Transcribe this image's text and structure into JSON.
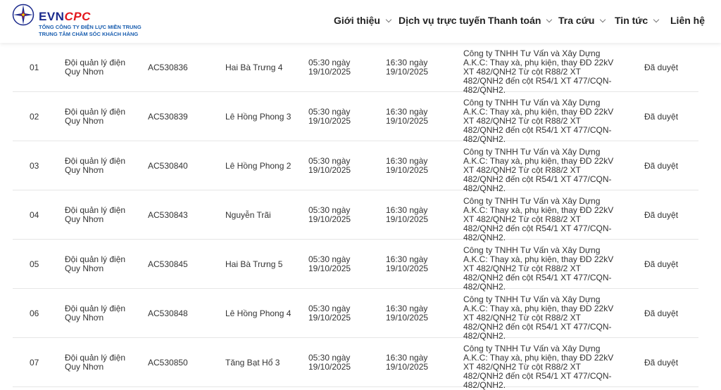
{
  "header": {
    "logo": {
      "brand_a": "EVN",
      "brand_b": "CPC",
      "line1": "TỔNG CÔNG TY ĐIỆN LỰC MIỀN TRUNG",
      "line2": "TRUNG TÂM CHĂM SÓC KHÁCH HÀNG"
    },
    "nav": [
      {
        "label": "Giới thiệu",
        "dropdown": true
      },
      {
        "label": "Dịch vụ trực tuyến",
        "dropdown": false
      },
      {
        "label": "Thanh toán",
        "dropdown": true
      },
      {
        "label": "Tra cứu",
        "dropdown": true
      },
      {
        "label": "Tin tức",
        "dropdown": true
      },
      {
        "label": "Liên hệ",
        "dropdown": false
      }
    ]
  },
  "rows": [
    {
      "stt": "01",
      "unit": "Đội quản lý điện Quy Nhơn",
      "code": "AC530836",
      "station": "Hai Bà Trưng 4",
      "start": "05:30 ngày 19/10/2025",
      "end": "16:30 ngày 19/10/2025",
      "reason": "Công ty TNHH Tư Vấn và Xây Dựng A.K.C: Thay xà, phụ kiện, thay ĐD 22kV XT 482/QNH2 Từ cột R88/2 XT 482/QNH2 đến cột R54/1 XT 477/CQN- 482/QNH2.",
      "status": "Đã duyệt"
    },
    {
      "stt": "02",
      "unit": "Đội quản lý điện Quy Nhơn",
      "code": "AC530839",
      "station": "Lê Hồng Phong 3",
      "start": "05:30 ngày 19/10/2025",
      "end": "16:30 ngày 19/10/2025",
      "reason": "Công ty TNHH Tư Vấn và Xây Dựng A.K.C: Thay xà, phụ kiện, thay ĐD 22kV XT 482/QNH2 Từ cột R88/2 XT 482/QNH2 đến cột R54/1 XT 477/CQN- 482/QNH2.",
      "status": "Đã duyệt"
    },
    {
      "stt": "03",
      "unit": "Đội quản lý điện Quy Nhơn",
      "code": "AC530840",
      "station": "Lê Hồng Phong 2",
      "start": "05:30 ngày 19/10/2025",
      "end": "16:30 ngày 19/10/2025",
      "reason": "Công ty TNHH Tư Vấn và Xây Dựng A.K.C: Thay xà, phụ kiện, thay ĐD 22kV XT 482/QNH2 Từ cột R88/2 XT 482/QNH2 đến cột R54/1 XT 477/CQN- 482/QNH2.",
      "status": "Đã duyệt"
    },
    {
      "stt": "04",
      "unit": "Đội quản lý điện Quy Nhơn",
      "code": "AC530843",
      "station": "Nguyễn Trãi",
      "start": "05:30 ngày 19/10/2025",
      "end": "16:30 ngày 19/10/2025",
      "reason": "Công ty TNHH Tư Vấn và Xây Dựng A.K.C: Thay xà, phụ kiện, thay ĐD 22kV XT 482/QNH2 Từ cột R88/2 XT 482/QNH2 đến cột R54/1 XT 477/CQN- 482/QNH2.",
      "status": "Đã duyệt"
    },
    {
      "stt": "05",
      "unit": "Đội quản lý điện Quy Nhơn",
      "code": "AC530845",
      "station": "Hai Bà Trưng 5",
      "start": "05:30 ngày 19/10/2025",
      "end": "16:30 ngày 19/10/2025",
      "reason": "Công ty TNHH Tư Vấn và Xây Dựng A.K.C: Thay xà, phụ kiện, thay ĐD 22kV XT 482/QNH2 Từ cột R88/2 XT 482/QNH2 đến cột R54/1 XT 477/CQN- 482/QNH2.",
      "status": "Đã duyệt"
    },
    {
      "stt": "06",
      "unit": "Đội quản lý điện Quy Nhơn",
      "code": "AC530848",
      "station": "Lê Hồng Phong 4",
      "start": "05:30 ngày 19/10/2025",
      "end": "16:30 ngày 19/10/2025",
      "reason": "Công ty TNHH Tư Vấn và Xây Dựng A.K.C: Thay xà, phụ kiện, thay ĐD 22kV XT 482/QNH2 Từ cột R88/2 XT 482/QNH2 đến cột R54/1 XT 477/CQN- 482/QNH2.",
      "status": "Đã duyệt"
    },
    {
      "stt": "07",
      "unit": "Đội quản lý điện Quy Nhơn",
      "code": "AC530850",
      "station": "Tăng Bạt Hổ 3",
      "start": "05:30 ngày 19/10/2025",
      "end": "16:30 ngày 19/10/2025",
      "reason": "Công ty TNHH Tư Vấn và Xây Dựng A.K.C: Thay xà, phụ kiện, thay ĐD 22kV XT 482/QNH2 Từ cột R88/2 XT 482/QNH2 đến cột R54/1 XT 477/CQN- 482/QNH2.",
      "status": "Đã duyệt"
    }
  ]
}
